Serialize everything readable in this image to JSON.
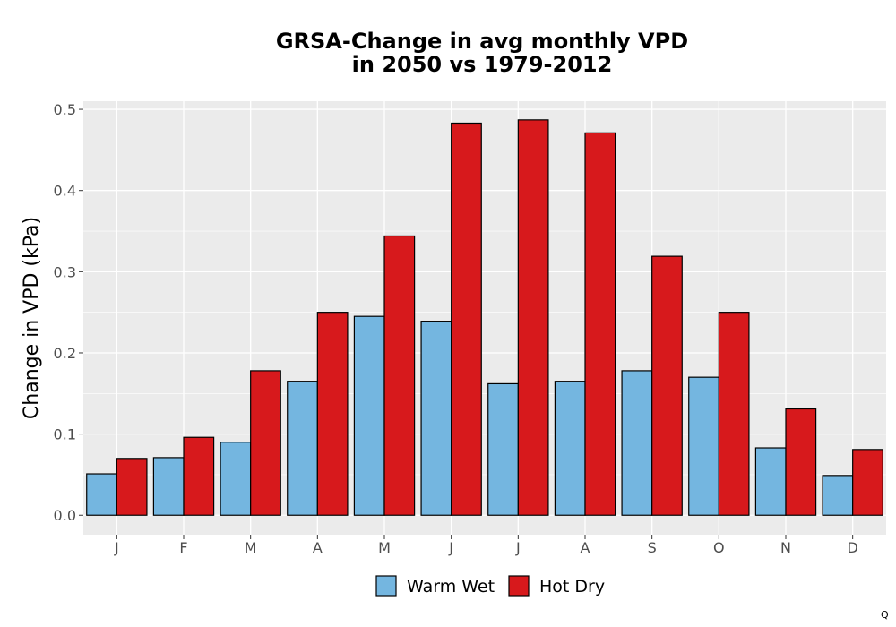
{
  "chart_data": {
    "type": "bar",
    "title_line1": "GRSA-Change in avg monthly VPD",
    "title_line2": "in 2050 vs 1979-2012",
    "xlabel": "",
    "ylabel": "Change in VPD (kPa)",
    "categories": [
      "J",
      "F",
      "M",
      "A",
      "M",
      "J",
      "J",
      "A",
      "S",
      "O",
      "N",
      "D"
    ],
    "ylim": [
      -0.024,
      0.51
    ],
    "yticks": [
      0.0,
      0.1,
      0.2,
      0.3,
      0.4,
      0.5
    ],
    "ytick_labels": [
      "0.0",
      "0.1",
      "0.2",
      "0.3",
      "0.4",
      "0.5"
    ],
    "grid": true,
    "legend_position": "bottom",
    "series": [
      {
        "name": "Warm Wet",
        "color": "#74b6e0",
        "values": [
          0.051,
          0.071,
          0.09,
          0.165,
          0.245,
          0.239,
          0.162,
          0.165,
          0.178,
          0.17,
          0.083,
          0.049
        ]
      },
      {
        "name": "Hot Dry",
        "color": "#d7191c",
        "values": [
          0.07,
          0.096,
          0.178,
          0.25,
          0.344,
          0.483,
          0.487,
          0.471,
          0.319,
          0.25,
          0.131,
          0.081
        ]
      }
    ]
  },
  "corner_mark": "Q"
}
